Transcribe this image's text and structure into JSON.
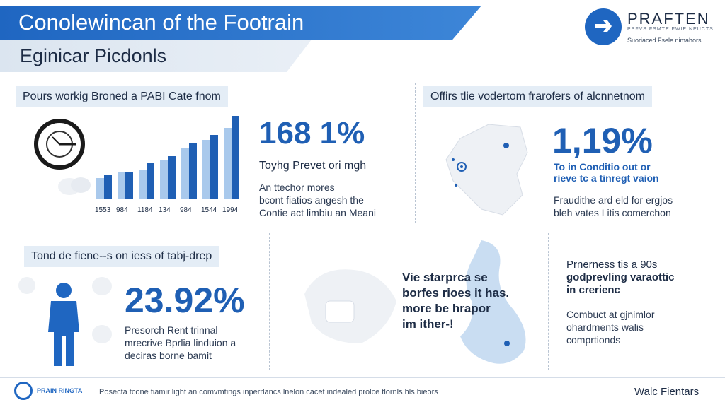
{
  "header": {
    "title": "Conolewincan of the Footrain",
    "subtitle": "Eginicar Picdonls",
    "brand": "PRAFTEN",
    "brand_tagline_1": "PSFVS FSMTE FWIE NEUCTS",
    "brand_tagline_2": "Suoriaced Fsele nimahors",
    "accent_color": "#1f66c1"
  },
  "panel_top_left": {
    "label": "Pours workig Broned a PABI Cate fnom",
    "stat": "168 1%",
    "stat_caption": "Toyhg Prevet ori mgh",
    "desc_lines": [
      "An ttechor mores",
      "bcont fiatios angesh the",
      "Contie act limbiu an Meani"
    ],
    "icon": "clock-icon",
    "chart_data": {
      "type": "bar",
      "categories": [
        "1553",
        "984",
        "1184",
        "134",
        "984",
        "1544",
        "1994"
      ],
      "series": [
        {
          "values": [
            35,
            45,
            50,
            65,
            85,
            100,
            120
          ]
        },
        {
          "values": [
            40,
            45,
            60,
            72,
            95,
            108,
            140
          ]
        }
      ],
      "series_colors": [
        "#a9c9ec",
        "#1f5fb4"
      ],
      "ylim": [
        0,
        140
      ]
    }
  },
  "panel_top_right": {
    "label": "Offirs tlie vodertom frarofers of alcnnetnom",
    "stat": "1,19%",
    "blue_line_1": "To in Conditio out or",
    "blue_line_2": "rieve tc a tinregt vaion",
    "desc_lines": [
      "Fraudithe ard eld for ergjos",
      "bleh vates Litis comerchon"
    ],
    "icon": "map-icon"
  },
  "panel_bottom_left": {
    "label": "Tond de fiene--s on iess of tabj-drep",
    "stat": "23.92%",
    "desc_lines": [
      "Presorch Rent trinnal",
      "mrecrive Bprlia linduion a",
      "deciras borne bamit"
    ],
    "icon": "person-icon"
  },
  "panel_bottom_mid": {
    "lines": [
      "Vie starprca se",
      "borfes rioes it has.",
      "more be hrapor",
      "im ither-!"
    ],
    "icon": "world-map-icon"
  },
  "panel_bottom_right": {
    "bold_line_1": "Prnerness tis a 90s",
    "bold_line_2": "godprevling varaottic",
    "bold_line_3": "in crerienc",
    "desc_lines": [
      "Combuct at gjnimlor",
      "ohardments walis",
      "comprtionds"
    ]
  },
  "footer": {
    "brand": "PRAIN RINGTA",
    "description": "Posecta tcone fiamir light an comvmtings inperrlancs lnelon cacet indealed prolce tlornls hls bieors",
    "right_text": "Walc Fientars"
  }
}
